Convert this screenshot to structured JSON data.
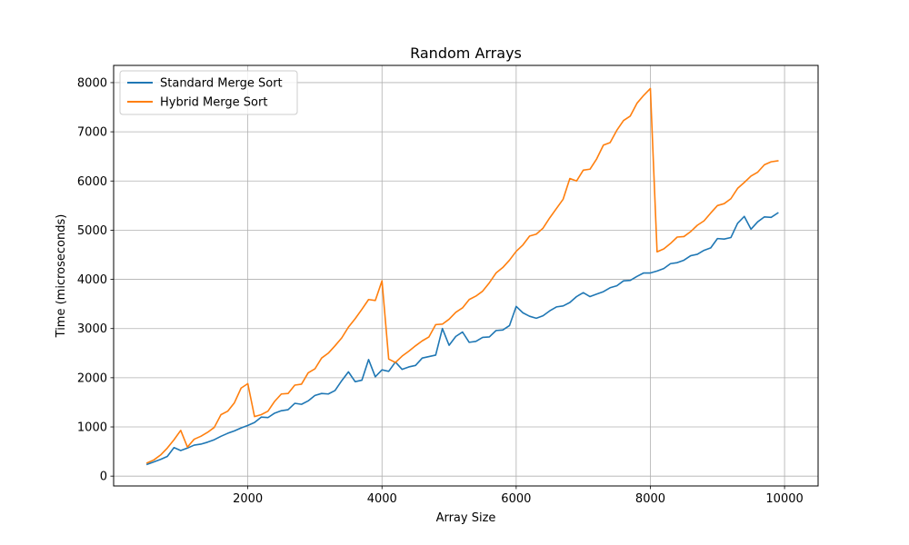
{
  "chart_data": {
    "type": "line",
    "title": "Random Arrays",
    "xlabel": "Array Size",
    "ylabel": "Time (microseconds)",
    "xlim": [
      0,
      10500
    ],
    "ylim": [
      -200,
      8350
    ],
    "xticks": [
      2000,
      4000,
      6000,
      8000,
      10000
    ],
    "yticks": [
      0,
      1000,
      2000,
      3000,
      4000,
      5000,
      6000,
      7000,
      8000
    ],
    "grid": true,
    "legend_position": "top-left",
    "x": [
      500,
      600,
      700,
      800,
      900,
      1000,
      1100,
      1200,
      1300,
      1400,
      1500,
      1600,
      1700,
      1800,
      1900,
      2000,
      2100,
      2200,
      2300,
      2400,
      2500,
      2600,
      2700,
      2800,
      2900,
      3000,
      3100,
      3200,
      3300,
      3400,
      3500,
      3600,
      3700,
      3800,
      3900,
      4000,
      4100,
      4200,
      4300,
      4400,
      4500,
      4600,
      4700,
      4800,
      4900,
      5000,
      5100,
      5200,
      5300,
      5400,
      5500,
      5600,
      5700,
      5800,
      5900,
      6000,
      6100,
      6200,
      6300,
      6400,
      6500,
      6600,
      6700,
      6800,
      6900,
      7000,
      7100,
      7200,
      7300,
      7400,
      7500,
      7600,
      7700,
      7800,
      7900,
      8000,
      8100,
      8200,
      8300,
      8400,
      8500,
      8600,
      8700,
      8800,
      8900,
      9000,
      9100,
      9200,
      9300,
      9400,
      9500,
      9600,
      9700,
      9800,
      9900
    ],
    "series": [
      {
        "name": "Standard Merge Sort",
        "color": "#1f77b4",
        "values": [
          240,
          290,
          340,
          400,
          580,
          520,
          570,
          630,
          650,
          690,
          740,
          810,
          870,
          920,
          980,
          1030,
          1090,
          1200,
          1190,
          1280,
          1330,
          1350,
          1480,
          1460,
          1530,
          1640,
          1680,
          1670,
          1740,
          1940,
          2120,
          1920,
          1950,
          2370,
          2020,
          2160,
          2130,
          2320,
          2170,
          2220,
          2250,
          2400,
          2430,
          2460,
          3000,
          2660,
          2840,
          2930,
          2720,
          2740,
          2820,
          2830,
          2960,
          2970,
          3060,
          3450,
          3320,
          3250,
          3210,
          3260,
          3360,
          3440,
          3460,
          3530,
          3650,
          3730,
          3650,
          3700,
          3750,
          3830,
          3870,
          3970,
          3980,
          4060,
          4130,
          4130,
          4170,
          4220,
          4320,
          4340,
          4390,
          4480,
          4510,
          4590,
          4640,
          4830,
          4820,
          4850,
          5140,
          5280,
          5020,
          5170,
          5270,
          5260,
          5350
        ]
      },
      {
        "name": "Hybrid Merge Sort",
        "color": "#ff7f0e",
        "values": [
          270,
          330,
          430,
          570,
          740,
          930,
          590,
          750,
          810,
          890,
          990,
          1250,
          1320,
          1490,
          1790,
          1880,
          1210,
          1250,
          1320,
          1520,
          1670,
          1680,
          1850,
          1870,
          2100,
          2180,
          2400,
          2500,
          2650,
          2810,
          3030,
          3200,
          3390,
          3590,
          3570,
          3970,
          2380,
          2310,
          2440,
          2540,
          2650,
          2750,
          2830,
          3080,
          3090,
          3190,
          3330,
          3420,
          3590,
          3660,
          3760,
          3930,
          4130,
          4240,
          4390,
          4570,
          4700,
          4880,
          4920,
          5040,
          5250,
          5440,
          5630,
          6050,
          6000,
          6220,
          6240,
          6450,
          6730,
          6780,
          7030,
          7230,
          7320,
          7580,
          7740,
          7880,
          4560,
          4620,
          4730,
          4860,
          4870,
          4970,
          5100,
          5190,
          5350,
          5500,
          5540,
          5640,
          5850,
          5970,
          6100,
          6180,
          6330,
          6390,
          6410
        ]
      }
    ]
  }
}
